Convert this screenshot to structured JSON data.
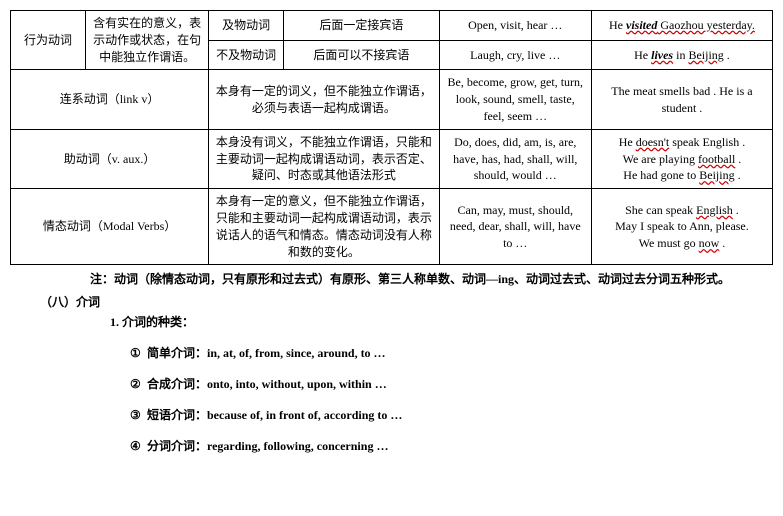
{
  "table": {
    "row1": {
      "cat": "行为动词",
      "desc": "含有实在的意义，表示动作或状态，在句中能独立作谓语。",
      "sub1": "及物动词",
      "sub1_desc": "后面一定接宾语",
      "sub1_ex": "Open, visit, hear …",
      "sub1_sent_a": "He ",
      "sub1_sent_b": "visited",
      "sub1_sent_c": " Gaozhou yesterday.",
      "sub2": "不及物动词",
      "sub2_desc": "后面可以不接宾语",
      "sub2_ex": "Laugh, cry, live …",
      "sub2_sent_a": "He ",
      "sub2_sent_b": "lives",
      "sub2_sent_c": " in ",
      "sub2_sent_d": "Beijing",
      "sub2_sent_e": " ."
    },
    "row2": {
      "cat": "连系动词（link v）",
      "desc": "本身有一定的词义，但不能独立作谓语，必须与表语一起构成谓语。",
      "ex": "Be, become, grow, get, turn, look, sound, smell, taste, feel, seem …",
      "sent": "The meat smells bad . He is a student ."
    },
    "row3": {
      "cat": "助动词（v. aux.）",
      "desc": "本身没有词义，不能独立作谓语，只能和主要动词一起构成谓语动词，表示否定、疑问、时态或其他语法形式",
      "ex": "Do, does, did, am, is, are, have, has, had, shall, will, should, would …",
      "sent_a": "He ",
      "sent_b": "doesn't",
      "sent_c": " speak English .",
      "sent_d": "We are playing ",
      "sent_e": "football",
      "sent_f": " .",
      "sent_g": "He had gone to ",
      "sent_h": "Beijing",
      "sent_i": " ."
    },
    "row4": {
      "cat": "情态动词（Modal Verbs）",
      "desc": "本身有一定的意义，但不能独立作谓语，只能和主要动词一起构成谓语动词，表示说话人的语气和情态。情态动词没有人称和数的变化。",
      "ex": "Can, may, must, should, need, dear, shall, will, have to …",
      "sent_a": "She can speak ",
      "sent_b": "English",
      "sent_c": " .",
      "sent_d": "May I speak to Ann, please.",
      "sent_e": "We must go ",
      "sent_f": "now",
      "sent_g": " ."
    }
  },
  "note": "注：动词（除情态动词，只有原形和过去式）有原形、第三人称单数、动词—ing、动词过去式、动词过去分词五种形式。",
  "section": "（八）介词",
  "list_title": "1. 介词的种类：",
  "items": {
    "i1_num": "①",
    "i1": " 简单介词：in, at, of, from, since, around, to …",
    "i2_num": "②",
    "i2": " 合成介词：onto, into, without, upon, within …",
    "i3_num": "③",
    "i3": " 短语介词：because of, in front of, according to …",
    "i4_num": "④",
    "i4": " 分词介词：regarding, following, concerning …"
  }
}
